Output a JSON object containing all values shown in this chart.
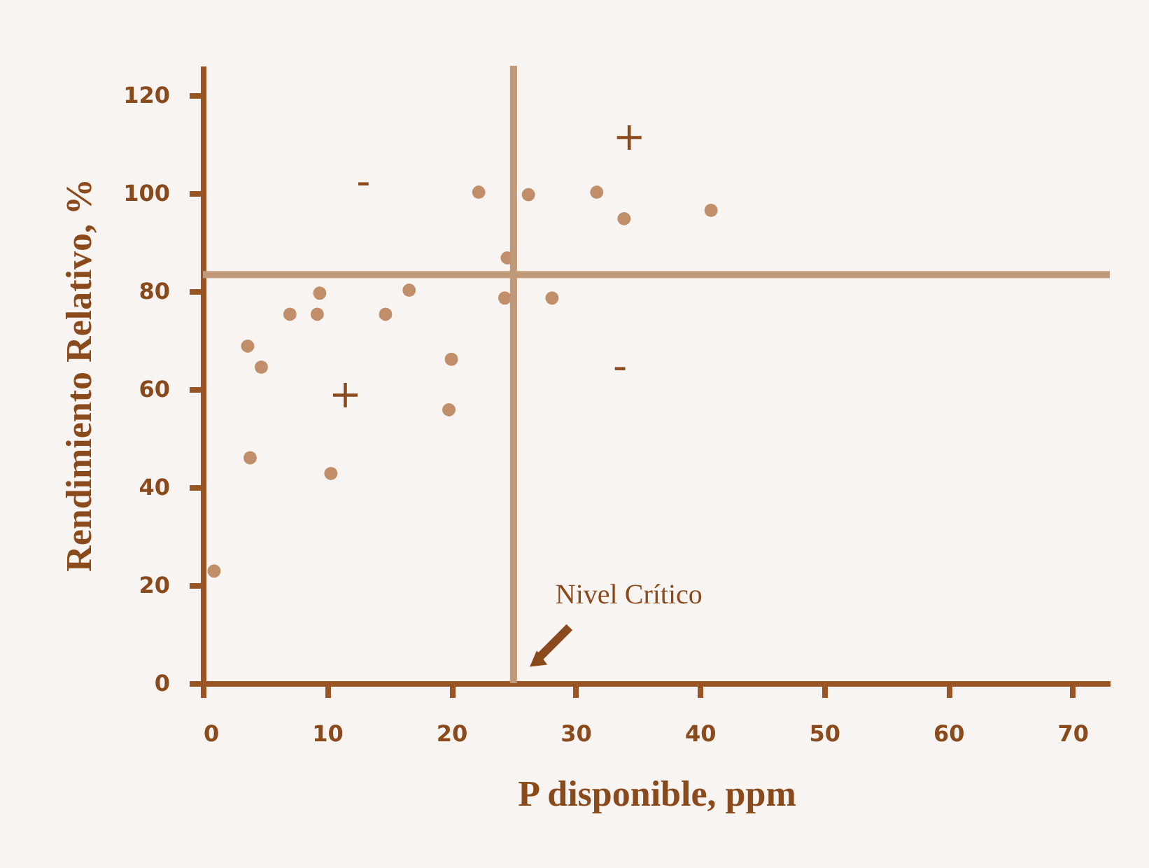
{
  "chart_data": {
    "type": "scatter",
    "xlabel": "P disponible, ppm",
    "ylabel": "Rendimiento Relativo, %",
    "x": [
      0.9,
      3.6,
      4.7,
      3.8,
      7.0,
      9.2,
      9.4,
      10.3,
      14.7,
      16.6,
      20.0,
      19.8,
      22.2,
      24.5,
      24.3,
      26.2,
      28.1,
      31.7,
      33.9,
      40.9
    ],
    "series": [
      {
        "color": "#c08f6a",
        "values": [
          22.9,
          68.8,
          64.5,
          46,
          75.3,
          75.3,
          79.6,
          42.8,
          75.3,
          80.2,
          66.1,
          55.8,
          100.2,
          86.8,
          78.6,
          99.7,
          78.6,
          100.2,
          94.8,
          96.5
        ]
      }
    ],
    "xlim": [
      0,
      73
    ],
    "ylim": [
      0,
      126
    ],
    "xticks": [
      0,
      10,
      20,
      30,
      40,
      50,
      60,
      70
    ],
    "yticks": [
      0,
      20,
      40,
      60,
      80,
      100,
      120
    ],
    "ref_lines": [
      {
        "axis": "x",
        "value": 25,
        "label": "Nivel Crítico",
        "color": "#c09a78"
      },
      {
        "axis": "y",
        "value": 83.4,
        "color": "#c09a78"
      }
    ],
    "annotations": [
      "-",
      "+",
      "+",
      "-"
    ],
    "grid": false,
    "marker": "circle"
  }
}
